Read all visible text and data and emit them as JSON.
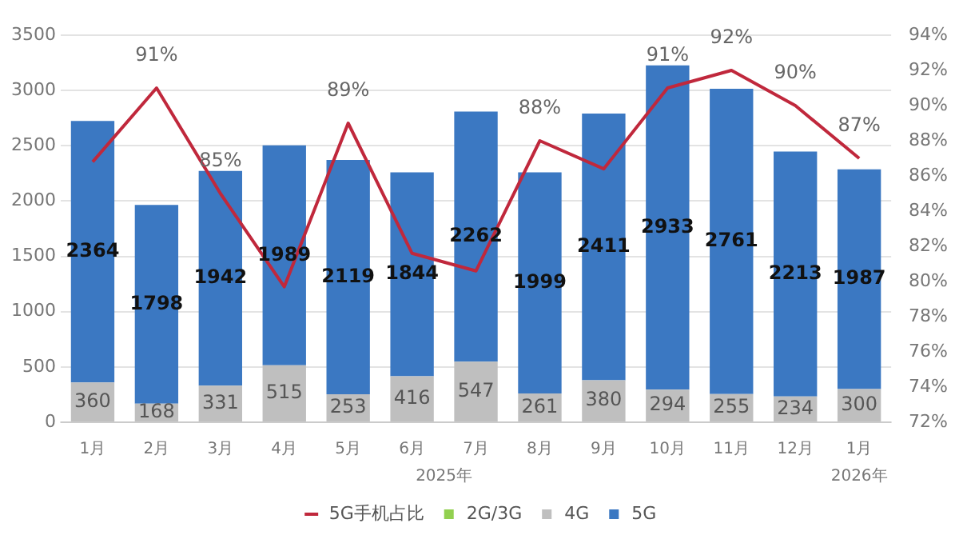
{
  "chart_data": {
    "type": "bar",
    "stacked": true,
    "categories": [
      "1月",
      "2月",
      "3月",
      "4月",
      "5月",
      "6月",
      "7月",
      "8月",
      "9月",
      "10月",
      "11月",
      "12月",
      "1月"
    ],
    "series": [
      {
        "name": "2G/3G",
        "color": "#92d050",
        "values": [
          0,
          0,
          0,
          0,
          0,
          0,
          0,
          0,
          0,
          0,
          0,
          0,
          0
        ]
      },
      {
        "name": "4G",
        "color": "#bfbfbf",
        "values": [
          360,
          168,
          331,
          515,
          253,
          416,
          547,
          261,
          380,
          294,
          255,
          234,
          300
        ],
        "value_labels": [
          "360",
          "168",
          "331",
          "515",
          "253",
          "416",
          "547",
          "261",
          "380",
          "294",
          "255",
          "234",
          "300"
        ]
      },
      {
        "name": "5G",
        "color": "#3b78c2",
        "values": [
          2364,
          1798,
          1942,
          1989,
          2119,
          1844,
          2262,
          1999,
          2411,
          2933,
          2761,
          2213,
          1987
        ],
        "value_labels": [
          "2364",
          "1798",
          "1942",
          "1989",
          "2119",
          "1844",
          "2262",
          "1999",
          "2411",
          "2933",
          "2761",
          "2213",
          "1987"
        ]
      },
      {
        "name": "5G手机占比",
        "type": "line",
        "axis": "y2",
        "color": "#c0283c",
        "values": [
          86.8,
          91,
          85,
          79.7,
          89,
          81.6,
          80.6,
          88,
          86.4,
          91,
          92,
          90,
          87
        ],
        "value_labels": [
          null,
          "91%",
          "85%",
          null,
          "89%",
          null,
          null,
          "88%",
          null,
          "91%",
          "92%",
          "90%",
          "87%"
        ]
      }
    ],
    "ylim": [
      0,
      3500
    ],
    "yticks": [
      0,
      500,
      1000,
      1500,
      2000,
      2500,
      3000,
      3500
    ],
    "y2lim": [
      72,
      94
    ],
    "y2ticks": [
      {
        "value": 72,
        "label": "72%"
      },
      {
        "value": 74,
        "label": "74%"
      },
      {
        "value": 76,
        "label": "76%"
      },
      {
        "value": 78,
        "label": "78%"
      },
      {
        "value": 80,
        "label": "80%"
      },
      {
        "value": 82,
        "label": "82%"
      },
      {
        "value": 84,
        "label": "84%"
      },
      {
        "value": 86,
        "label": "86%"
      },
      {
        "value": 88,
        "label": "88%"
      },
      {
        "value": 90,
        "label": "90%"
      },
      {
        "value": 92,
        "label": "92%"
      },
      {
        "value": 94,
        "label": "94%"
      }
    ],
    "annotations": [
      "2025年",
      "2026年"
    ],
    "grid": "y",
    "legend": "bottom",
    "marker": "none",
    "line_style": "solid"
  }
}
